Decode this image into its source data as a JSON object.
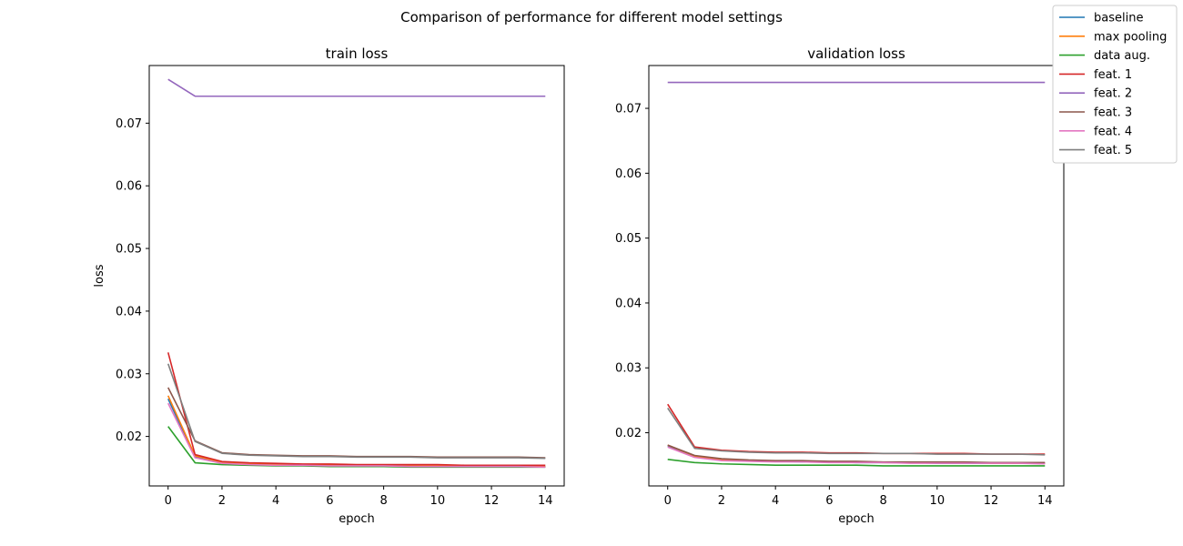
{
  "chart_data": [
    {
      "type": "line",
      "title": "train loss",
      "xlabel": "epoch",
      "ylabel": "loss",
      "xlim": [
        -0.7,
        14.7
      ],
      "ylim": [
        0.0121,
        0.0792
      ],
      "xticks": [
        0,
        2,
        4,
        6,
        8,
        10,
        12,
        14
      ],
      "yticks": [
        0.02,
        0.03,
        0.04,
        0.05,
        0.06,
        0.07
      ],
      "x": [
        0,
        1,
        2,
        3,
        4,
        5,
        6,
        7,
        8,
        9,
        10,
        11,
        12,
        13,
        14
      ],
      "series": [
        {
          "name": "baseline",
          "color": "#1f77b4",
          "values": [
            0.026,
            0.0168,
            0.0158,
            0.0156,
            0.0155,
            0.0154,
            0.0154,
            0.0153,
            0.0153,
            0.0153,
            0.0152,
            0.0152,
            0.0152,
            0.0152,
            0.0152
          ]
        },
        {
          "name": "max pooling",
          "color": "#ff7f0e",
          "values": [
            0.0265,
            0.0169,
            0.0159,
            0.0157,
            0.0155,
            0.0155,
            0.0154,
            0.0154,
            0.0153,
            0.0153,
            0.0153,
            0.0153,
            0.0152,
            0.0152,
            0.0152
          ]
        },
        {
          "name": "data aug.",
          "color": "#2ca02c",
          "values": [
            0.0216,
            0.0158,
            0.0155,
            0.0154,
            0.0153,
            0.0153,
            0.0152,
            0.0152,
            0.0152,
            0.0151,
            0.0151,
            0.0151,
            0.0151,
            0.0151,
            0.0151
          ]
        },
        {
          "name": "feat. 1",
          "color": "#d62728",
          "values": [
            0.0334,
            0.0171,
            0.016,
            0.0158,
            0.0157,
            0.0156,
            0.0156,
            0.0155,
            0.0155,
            0.0155,
            0.0155,
            0.0154,
            0.0154,
            0.0154,
            0.0154
          ]
        },
        {
          "name": "feat. 2",
          "color": "#9467bd",
          "values": [
            0.077,
            0.0743,
            0.0743,
            0.0743,
            0.0743,
            0.0743,
            0.0743,
            0.0743,
            0.0743,
            0.0743,
            0.0743,
            0.0743,
            0.0743,
            0.0743,
            0.0743
          ]
        },
        {
          "name": "feat. 3",
          "color": "#8c564b",
          "values": [
            0.0278,
            0.0193,
            0.0174,
            0.0171,
            0.017,
            0.0169,
            0.0169,
            0.0168,
            0.0168,
            0.0168,
            0.0167,
            0.0167,
            0.0167,
            0.0167,
            0.0166
          ]
        },
        {
          "name": "feat. 4",
          "color": "#e377c2",
          "values": [
            0.0253,
            0.0166,
            0.0157,
            0.0155,
            0.0154,
            0.0154,
            0.0153,
            0.0153,
            0.0153,
            0.0152,
            0.0152,
            0.0152,
            0.0152,
            0.0152,
            0.0151
          ]
        },
        {
          "name": "feat. 5",
          "color": "#7f7f7f",
          "values": [
            0.0316,
            0.0192,
            0.0173,
            0.017,
            0.0169,
            0.0168,
            0.0168,
            0.0167,
            0.0167,
            0.0167,
            0.0166,
            0.0166,
            0.0166,
            0.0166,
            0.0165
          ]
        }
      ]
    },
    {
      "type": "line",
      "title": "validation loss",
      "xlabel": "epoch",
      "ylabel": "",
      "xlim": [
        -0.7,
        14.7
      ],
      "ylim": [
        0.0118,
        0.0766
      ],
      "xticks": [
        0,
        2,
        4,
        6,
        8,
        10,
        12,
        14
      ],
      "yticks": [
        0.02,
        0.03,
        0.04,
        0.05,
        0.06,
        0.07
      ],
      "x": [
        0,
        1,
        2,
        3,
        4,
        5,
        6,
        7,
        8,
        9,
        10,
        11,
        12,
        13,
        14
      ],
      "series": [
        {
          "name": "baseline",
          "color": "#1f77b4",
          "values": [
            0.018,
            0.0163,
            0.0158,
            0.0157,
            0.0156,
            0.0155,
            0.0155,
            0.0154,
            0.0154,
            0.0154,
            0.0153,
            0.0153,
            0.0153,
            0.0153,
            0.0153
          ]
        },
        {
          "name": "max pooling",
          "color": "#ff7f0e",
          "values": [
            0.0181,
            0.0164,
            0.0159,
            0.0157,
            0.0156,
            0.0156,
            0.0155,
            0.0155,
            0.0154,
            0.0154,
            0.0154,
            0.0154,
            0.0153,
            0.0153,
            0.0153
          ]
        },
        {
          "name": "data aug.",
          "color": "#2ca02c",
          "values": [
            0.0159,
            0.0154,
            0.0152,
            0.0151,
            0.015,
            0.015,
            0.015,
            0.015,
            0.0149,
            0.0149,
            0.0149,
            0.0149,
            0.0149,
            0.0149,
            0.0149
          ]
        },
        {
          "name": "feat. 1",
          "color": "#d62728",
          "values": [
            0.0244,
            0.0178,
            0.0173,
            0.0171,
            0.017,
            0.017,
            0.0169,
            0.0169,
            0.0168,
            0.0168,
            0.0168,
            0.0168,
            0.0167,
            0.0167,
            0.0167
          ]
        },
        {
          "name": "feat. 2",
          "color": "#9467bd",
          "values": [
            0.074,
            0.074,
            0.074,
            0.074,
            0.074,
            0.074,
            0.074,
            0.074,
            0.074,
            0.074,
            0.074,
            0.074,
            0.074,
            0.074,
            0.074
          ]
        },
        {
          "name": "feat. 3",
          "color": "#8c564b",
          "values": [
            0.0181,
            0.0165,
            0.016,
            0.0158,
            0.0157,
            0.0157,
            0.0156,
            0.0156,
            0.0155,
            0.0155,
            0.0155,
            0.0155,
            0.0154,
            0.0154,
            0.0154
          ]
        },
        {
          "name": "feat. 4",
          "color": "#e377c2",
          "values": [
            0.0178,
            0.0162,
            0.0157,
            0.0156,
            0.0155,
            0.0155,
            0.0154,
            0.0154,
            0.0154,
            0.0153,
            0.0153,
            0.0153,
            0.0153,
            0.0153,
            0.0152
          ]
        },
        {
          "name": "feat. 5",
          "color": "#7f7f7f",
          "values": [
            0.0238,
            0.0176,
            0.0172,
            0.017,
            0.0169,
            0.0169,
            0.0168,
            0.0168,
            0.0168,
            0.0168,
            0.0167,
            0.0167,
            0.0167,
            0.0167,
            0.0166
          ]
        }
      ]
    }
  ],
  "figure": {
    "suptitle": "Comparison of performance for different model settings",
    "legend_placement": "upper-right",
    "grid": false
  },
  "legend": [
    {
      "label": "baseline",
      "color": "#1f77b4"
    },
    {
      "label": "max pooling",
      "color": "#ff7f0e"
    },
    {
      "label": "data aug.",
      "color": "#2ca02c"
    },
    {
      "label": "feat. 1",
      "color": "#d62728"
    },
    {
      "label": "feat. 2",
      "color": "#9467bd"
    },
    {
      "label": "feat. 3",
      "color": "#8c564b"
    },
    {
      "label": "feat. 4",
      "color": "#e377c2"
    },
    {
      "label": "feat. 5",
      "color": "#7f7f7f"
    }
  ]
}
